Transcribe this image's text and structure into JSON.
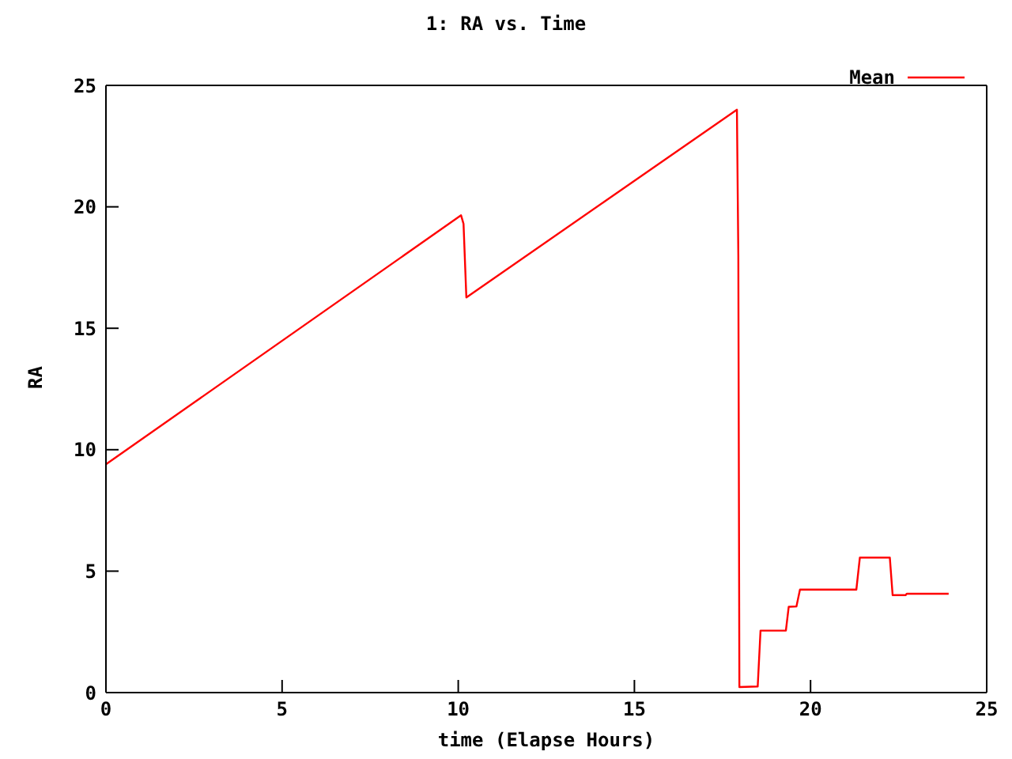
{
  "chart_data": {
    "type": "line",
    "title": "1: RA vs. Time",
    "xlabel": "time (Elapse Hours)",
    "ylabel": "RA",
    "xlim": [
      0,
      25
    ],
    "xticks": [
      0,
      5,
      10,
      15,
      20,
      25
    ],
    "ylim": [
      0,
      25
    ],
    "yticks": [
      0,
      5,
      10,
      15,
      20,
      25
    ],
    "legend": "top right",
    "marker": "none",
    "line_style": "solid",
    "series": [
      {
        "name": "Mean",
        "color": "#ff0000",
        "x": [
          0,
          10.08,
          10.15,
          10.23,
          17.91,
          17.95,
          17.98,
          18.5,
          18.58,
          19.3,
          19.38,
          19.6,
          19.7,
          21.3,
          21.4,
          22.25,
          22.33,
          22.7,
          22.73,
          23.92
        ],
        "values": [
          9.4,
          19.65,
          19.3,
          16.27,
          24.0,
          18.0,
          0.23,
          0.25,
          2.55,
          2.55,
          3.53,
          3.55,
          4.24,
          4.24,
          5.56,
          5.56,
          4.01,
          4.01,
          4.07,
          4.07
        ]
      }
    ]
  }
}
